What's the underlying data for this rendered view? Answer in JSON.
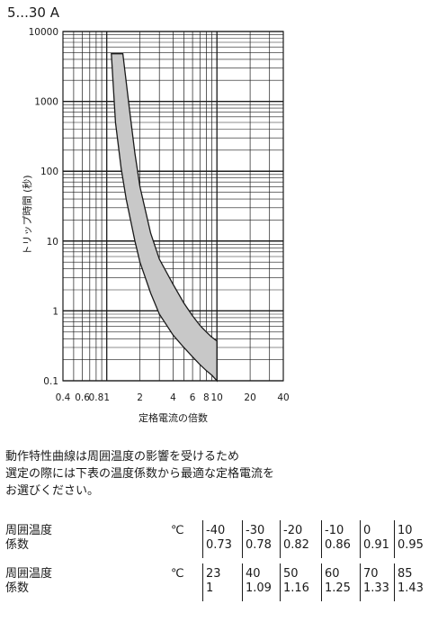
{
  "title": "5...30 A",
  "chart_data": {
    "type": "area",
    "xlabel": "定格電流の倍数",
    "ylabel": "トリップ時間 (秒)",
    "x_scale": "log",
    "y_scale": "log",
    "xlim": [
      0.4,
      40
    ],
    "ylim": [
      0.1,
      10000
    ],
    "grid": true,
    "x_ticks": [
      "0.4",
      "0.6",
      "0.8",
      "1",
      "2",
      "4",
      "6",
      "8",
      "10",
      "20",
      "40"
    ],
    "y_ticks": [
      "0.1",
      "1",
      "10",
      "100",
      "1000",
      "10000"
    ],
    "band": {
      "upper": {
        "x": [
          1.4,
          1.6,
          1.8,
          2.0,
          2.5,
          3.0,
          4.0,
          5.0,
          6.0,
          7.0,
          8.0,
          9.0,
          10.0
        ],
        "y": [
          4800,
          800,
          180,
          60,
          13,
          5.5,
          2.4,
          1.3,
          0.85,
          0.62,
          0.5,
          0.42,
          0.37
        ]
      },
      "lower": {
        "x": [
          1.1,
          1.2,
          1.35,
          1.5,
          1.8,
          2.0,
          2.5,
          3.0,
          4.0,
          5.0,
          6.0,
          7.0,
          8.0,
          9.0,
          10.0
        ],
        "y": [
          4800,
          500,
          110,
          40,
          10,
          5,
          1.8,
          0.9,
          0.45,
          0.3,
          0.22,
          0.17,
          0.14,
          0.12,
          0.1
        ]
      }
    }
  },
  "note": "動作特性曲線は周囲温度の影響を受けるため\n選定の際には下表の温度係数から最適な定格電流を\nお選びください。",
  "table": {
    "rows": [
      {
        "label_1": "周囲温度",
        "label_2": "係数",
        "unit": "℃",
        "temps": [
          "-40",
          "-30",
          "-20",
          "-10",
          "0",
          "10"
        ],
        "coefs": [
          "0.73",
          "0.78",
          "0.82",
          "0.86",
          "0.91",
          "0.95"
        ]
      },
      {
        "label_1": "周囲温度",
        "label_2": "係数",
        "unit": "℃",
        "temps": [
          "23",
          "40",
          "50",
          "60",
          "70",
          "85"
        ],
        "coefs": [
          "1",
          "1.09",
          "1.16",
          "1.25",
          "1.33",
          "1.43"
        ]
      }
    ]
  }
}
